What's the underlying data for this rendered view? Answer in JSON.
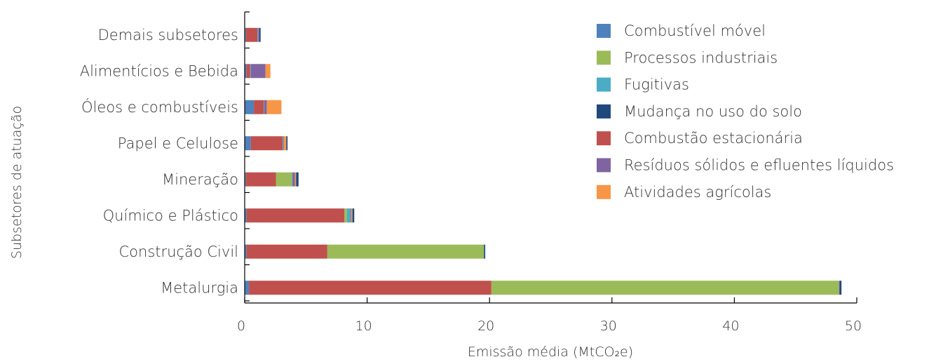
{
  "chart_data": {
    "type": "bar",
    "orientation": "horizontal",
    "stacked": true,
    "xlabel": "Emissão média (MtCO₂e)",
    "ylabel": "Subsetores de atuação",
    "xlim": [
      0,
      50
    ],
    "xticks": [
      "0",
      "10",
      "20",
      "30",
      "40",
      "50"
    ],
    "grid": false,
    "legend_position": "top-right",
    "categories": [
      "Demais subsetores",
      "Alimentícios e Bebida",
      "Óleos e combustíveis",
      "Papel e Celulose",
      "Mineração",
      "Químico e Plástico",
      "Construção Civil",
      "Metalurgia"
    ],
    "series": [
      {
        "name": "Combustível móvel",
        "color": "#4F81BD",
        "values": [
          0.1,
          0.15,
          0.75,
          0.5,
          0.1,
          0.15,
          0.15,
          0.35
        ]
      },
      {
        "name": "Processos industriais",
        "color": "#9BBB59",
        "values": [
          0.0,
          0.0,
          0.0,
          0.0,
          1.3,
          0.2,
          12.8,
          28.4
        ]
      },
      {
        "name": "Fugitivas",
        "color": "#4BACC6",
        "values": [
          0.05,
          0.05,
          0.05,
          0.05,
          0.05,
          0.3,
          0.0,
          0.0
        ]
      },
      {
        "name": "Mudança no uso do solo",
        "color": "#1F497D",
        "values": [
          0.1,
          0.0,
          0.0,
          0.1,
          0.2,
          0.15,
          0.1,
          0.15
        ]
      },
      {
        "name": "Combustão estacionária",
        "color": "#C0504D",
        "values": [
          0.95,
          0.3,
          0.8,
          2.6,
          2.45,
          8.0,
          6.6,
          19.8
        ]
      },
      {
        "name": "Resíduos sólidos e efluentes líquidos",
        "color": "#8064A2",
        "values": [
          0.1,
          1.2,
          0.2,
          0.05,
          0.2,
          0.05,
          0.0,
          0.05
        ]
      },
      {
        "name": "Atividades agrícolas",
        "color": "#F79646",
        "values": [
          0.0,
          0.4,
          1.2,
          0.2,
          0.1,
          0.1,
          0.0,
          0.0
        ]
      }
    ],
    "stack_order": [
      "Combustível móvel",
      "Combustão estacionária",
      "Processos industriais",
      "Fugitivas",
      "Resíduos sólidos e efluentes líquidos",
      "Atividades agrícolas",
      "Mudança no uso do solo"
    ]
  }
}
